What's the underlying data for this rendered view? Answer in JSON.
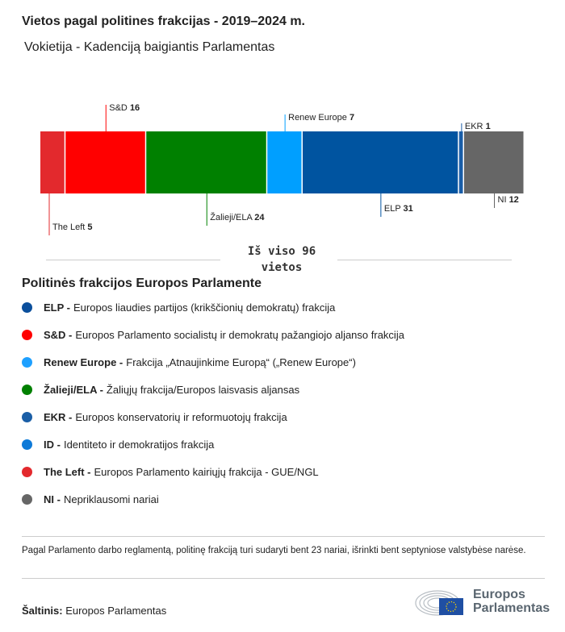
{
  "title": "Vietos pagal politines frakcijas - 2019–2024 m.",
  "subtitle": "Vokietija - Kadenciją baigiantis Parlamentas",
  "total_line1": "Iš viso 96",
  "total_line2": "vietos",
  "chart_data": {
    "type": "bar",
    "orientation": "stacked-horizontal",
    "total": 96,
    "segments": [
      {
        "name": "The Left",
        "value": 5,
        "color": "#e3292d",
        "label_pos": "bottom"
      },
      {
        "name": "S&D",
        "value": 16,
        "color": "#ff0000",
        "label_pos": "top"
      },
      {
        "name": "Žalieji/ELA",
        "value": 24,
        "color": "#008000",
        "label_pos": "bottom"
      },
      {
        "name": "Renew Europe",
        "value": 7,
        "color": "#009fff",
        "label_pos": "top"
      },
      {
        "name": "ELP",
        "value": 31,
        "color": "#0054a0",
        "label_pos": "bottom"
      },
      {
        "name": "EKR",
        "value": 1,
        "color": "#1a5ea8",
        "label_pos": "top"
      },
      {
        "name": "NI",
        "value": 12,
        "color": "#666666",
        "label_pos": "bottom"
      }
    ]
  },
  "legend_title": "Politinės frakcijos Europos Parlamente",
  "legend": [
    {
      "abbr": "ELP -",
      "text": "Europos liaudies partijos (krikščionių demokratų) frakcija",
      "color": "#0b4f9c"
    },
    {
      "abbr": "S&D -",
      "text": "Europos Parlamento socialistų ir demokratų pažangiojo aljanso frakcija",
      "color": "#ff0000"
    },
    {
      "abbr": "Renew Europe -",
      "text": "Frakcija „Atnaujinkime Europą“ („Renew Europe“)",
      "color": "#1ea0ff"
    },
    {
      "abbr": "Žalieji/ELA -",
      "text": "Žaliųjų frakcija/Europos laisvasis aljansas",
      "color": "#008000"
    },
    {
      "abbr": "EKR -",
      "text": "Europos konservatorių ir reformuotojų frakcija",
      "color": "#1a5ea6"
    },
    {
      "abbr": "ID -",
      "text": "Identiteto ir demokratijos frakcija",
      "color": "#0e7ad8"
    },
    {
      "abbr": "The Left -",
      "text": "Europos Parlamento kairiųjų frakcija - GUE/NGL",
      "color": "#e3292d"
    },
    {
      "abbr": "NI -",
      "text": "Nepriklausomi nariai",
      "color": "#666666"
    }
  ],
  "note": "Pagal Parlamento darbo reglamentą, politinę frakciją turi sudaryti bent 23 nariai, išrinkti bent septyniose valstybėse narėse.",
  "source_label": "Šaltinis:",
  "source_value": "Europos Parlamentas",
  "logo_text": [
    "Europos",
    "Parlamentas"
  ]
}
